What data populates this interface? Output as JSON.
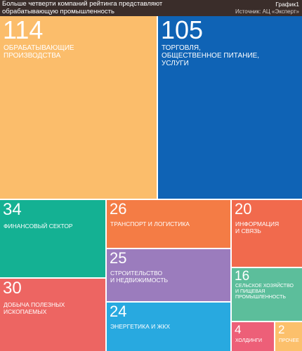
{
  "header": {
    "title_line1": "Больше четверти компаний рейтинга представляют",
    "title_line2": "обрабатывающую промышленность",
    "chart_label": "График1",
    "source": "Источник: АЦ «Эксперт»"
  },
  "chart_data": {
    "type": "treemap",
    "title": "Больше четверти компаний рейтинга представляют обрабатывающую промышленность",
    "source": "Источник: АЦ «Эксперт»",
    "items": [
      {
        "value": 114,
        "label": [
          "ОБРАБАТЫВАЮЩИЕ",
          "ПРОИЗВОДСТВА"
        ],
        "color": "#fbbd6b"
      },
      {
        "value": 105,
        "label": [
          "ТОРГОВЛЯ,",
          "ОБЩЕСТВЕННОЕ ПИТАНИЕ,",
          "УСЛУГИ"
        ],
        "color": "#0f63b5"
      },
      {
        "value": 34,
        "label": [
          "ФИНАНСОВЫЙ СЕКТОР"
        ],
        "color": "#14b193"
      },
      {
        "value": 30,
        "label": [
          "ДОБЫЧА ПОЛЕЗНЫХ",
          "ИСКОПАЕМЫХ"
        ],
        "color": "#ed6562"
      },
      {
        "value": 26,
        "label": [
          "ТРАНСПОРТ И ЛОГИСТИКА"
        ],
        "color": "#f47c45"
      },
      {
        "value": 25,
        "label": [
          "СТРОИТЕЛЬСТВО",
          "И НЕДВИЖИМОСТЬ"
        ],
        "color": "#9b7cbd"
      },
      {
        "value": 24,
        "label": [
          "ЭНЕРГЕТИКА И ЖКХ"
        ],
        "color": "#28a9e0"
      },
      {
        "value": 20,
        "label": [
          "ИНФОРМАЦИЯ",
          "И СВЯЗЬ"
        ],
        "color": "#f16a4d"
      },
      {
        "value": 16,
        "label": [
          "СЕЛЬСКОЕ ХОЗЯЙСТВО",
          "И ПИЩЕВАЯ",
          "ПРОМЫШЛЕННОСТЬ"
        ],
        "color": "#5cbe9b"
      },
      {
        "value": 4,
        "label": [
          "ХОЛДИНГИ"
        ],
        "color": "#ed5f78"
      },
      {
        "value": 2,
        "label": [
          "ПРОЧЕЕ"
        ],
        "color": "#fcc06c"
      }
    ]
  }
}
